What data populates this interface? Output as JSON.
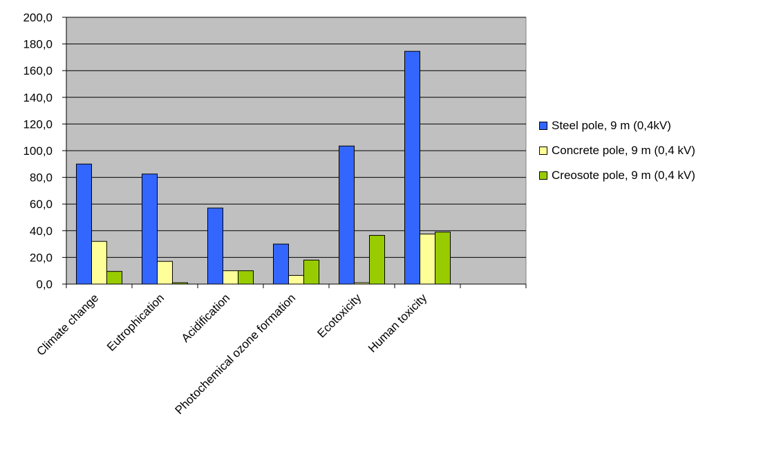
{
  "chart_data": {
    "type": "bar",
    "title": "",
    "xlabel": "",
    "ylabel": "",
    "categories": [
      "Climate change",
      "Eutrophication",
      "Acidification",
      "Photochemical ozone formation",
      "Ecotoxicity",
      "Human toxicity",
      ""
    ],
    "series": [
      {
        "name": "Steel pole, 9 m (0,4kV)",
        "color": "#3366ff",
        "values": [
          90.0,
          82.5,
          57.0,
          30.0,
          103.5,
          174.5,
          null
        ]
      },
      {
        "name": "Concrete pole, 9 m (0,4 kV)",
        "color": "#ffff99",
        "values": [
          32.0,
          17.0,
          10.0,
          6.5,
          1.0,
          37.5,
          null
        ]
      },
      {
        "name": "Creosote pole, 9 m (0,4 kV)",
        "color": "#99cc00",
        "values": [
          9.5,
          1.0,
          10.0,
          18.0,
          36.5,
          39.0,
          null
        ]
      }
    ],
    "ylim": [
      0,
      200
    ],
    "yticks": [
      "0,0",
      "20,0",
      "40,0",
      "60,0",
      "80,0",
      "100,0",
      "120,0",
      "140,0",
      "160,0",
      "180,0",
      "200,0"
    ],
    "grid": true,
    "plot_background": "#c0c0c0",
    "legend_position": "right"
  }
}
